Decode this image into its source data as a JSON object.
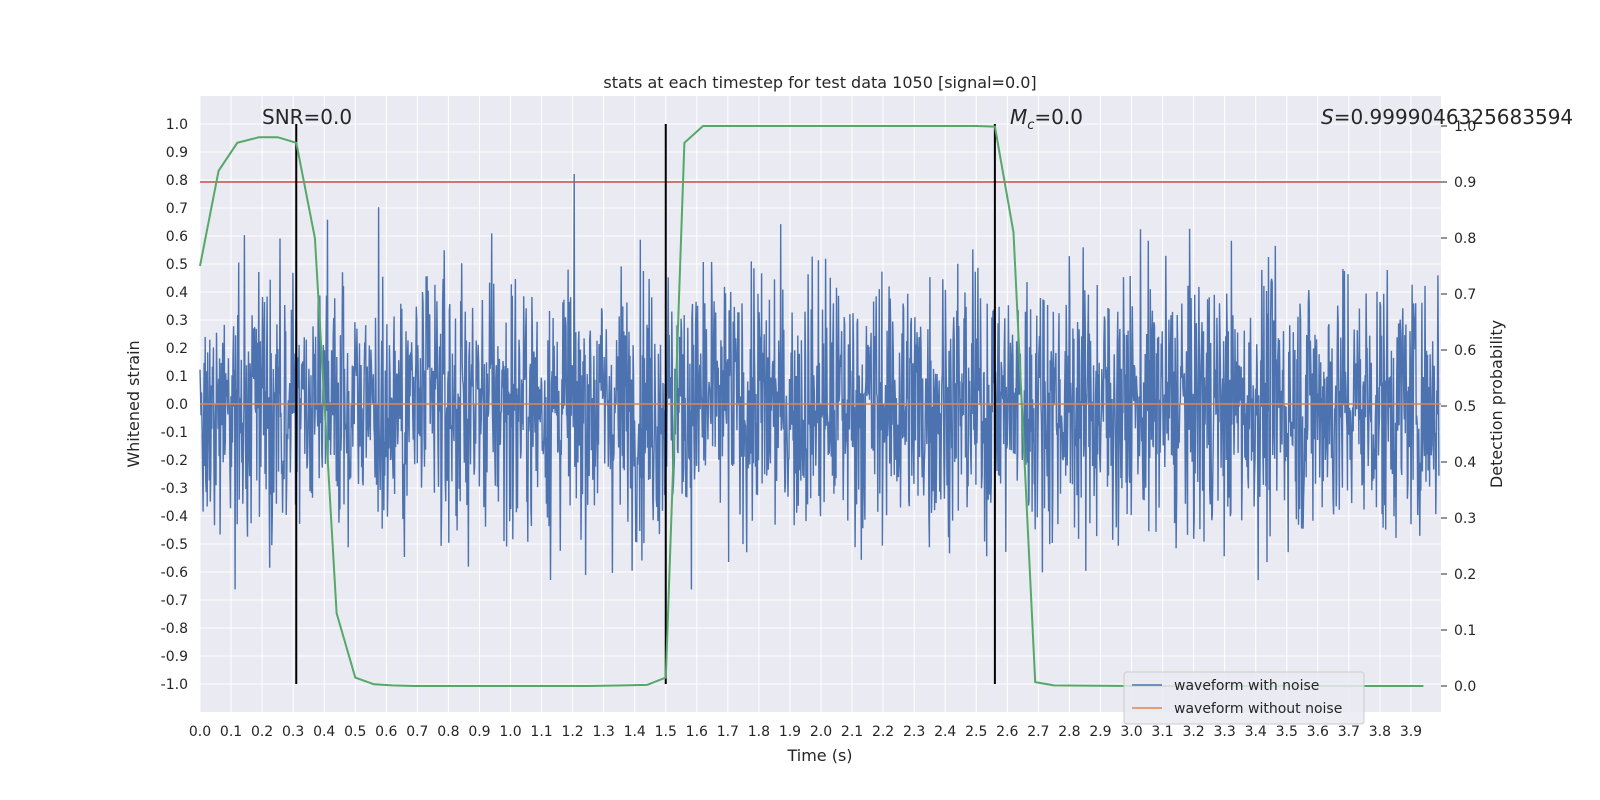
{
  "chart_data": {
    "type": "line",
    "title": "stats at each timestep for test data 1050 [signal=0.0]",
    "xlabel": "Time (s)",
    "ylabel": "Whitened strain",
    "y2label": "Detection probability",
    "xlim": [
      0.0,
      4.0
    ],
    "ylim": [
      -1.1,
      1.1
    ],
    "y2lim": [
      -0.05,
      1.05
    ],
    "xticks": [
      "0.0",
      "0.1",
      "0.2",
      "0.3",
      "0.4",
      "0.5",
      "0.6",
      "0.7",
      "0.8",
      "0.9",
      "1.0",
      "1.1",
      "1.2",
      "1.3",
      "1.4",
      "1.5",
      "1.6",
      "1.7",
      "1.8",
      "1.9",
      "2.0",
      "2.1",
      "2.2",
      "2.3",
      "2.4",
      "2.5",
      "2.6",
      "2.7",
      "2.8",
      "2.9",
      "3.0",
      "3.1",
      "3.2",
      "3.3",
      "3.4",
      "3.5",
      "3.6",
      "3.7",
      "3.8",
      "3.9"
    ],
    "yticks": [
      "1.0",
      "0.9",
      "0.8",
      "0.7",
      "0.6",
      "0.5",
      "0.4",
      "0.3",
      "0.2",
      "0.1",
      "0.0",
      "-0.1",
      "-0.2",
      "-0.3",
      "-0.4",
      "-0.5",
      "-0.6",
      "-0.7",
      "-0.8",
      "-0.9",
      "-1.0"
    ],
    "y2ticks": [
      "1.0",
      "0.9",
      "0.8",
      "0.7",
      "0.6",
      "0.5",
      "0.4",
      "0.3",
      "0.2",
      "0.1",
      "0.0"
    ],
    "grid": true,
    "legend_position": "lower-right",
    "annotations": {
      "snr": "SNR=0.0",
      "mc_symbol": "M",
      "mc_sub": "c",
      "mc_value": "=0.0",
      "s_symbol": "S",
      "s_value": "=0.9999046325683594"
    },
    "series": [
      {
        "name": "waveform with noise",
        "color": "#4c72b0",
        "description_values": "dense noise, amplitude mostly within -0.9 to 1.0"
      },
      {
        "name": "waveform without noise",
        "color": "#dd8452",
        "y_constant": 0.0
      },
      {
        "color": "#55a868",
        "axis": "right",
        "x": [
          0.0,
          0.06,
          0.12,
          0.19,
          0.25,
          0.31,
          0.37,
          0.44,
          0.5,
          0.56,
          0.62,
          0.69,
          0.75,
          1.0,
          1.25,
          1.44,
          1.5,
          1.56,
          1.62,
          1.69,
          2.0,
          2.3,
          2.5,
          2.56,
          2.62,
          2.69,
          2.75,
          3.0,
          3.5,
          3.94
        ],
        "y": [
          0.75,
          0.92,
          0.97,
          0.98,
          0.98,
          0.97,
          0.8,
          0.13,
          0.015,
          0.003,
          0.001,
          0.0,
          0.0,
          0.0,
          0.0,
          0.002,
          0.015,
          0.97,
          1.0,
          1.0,
          1.0,
          1.0,
          1.0,
          0.999,
          0.81,
          0.007,
          0.001,
          0.0,
          0.0,
          0.0
        ]
      }
    ],
    "hlines": [
      {
        "y2": 0.9,
        "color": "#c44e52"
      }
    ],
    "vlines": [
      {
        "x": 0.31,
        "color": "#000000"
      },
      {
        "x": 1.5,
        "color": "#000000"
      },
      {
        "x": 2.56,
        "color": "#000000"
      }
    ]
  }
}
